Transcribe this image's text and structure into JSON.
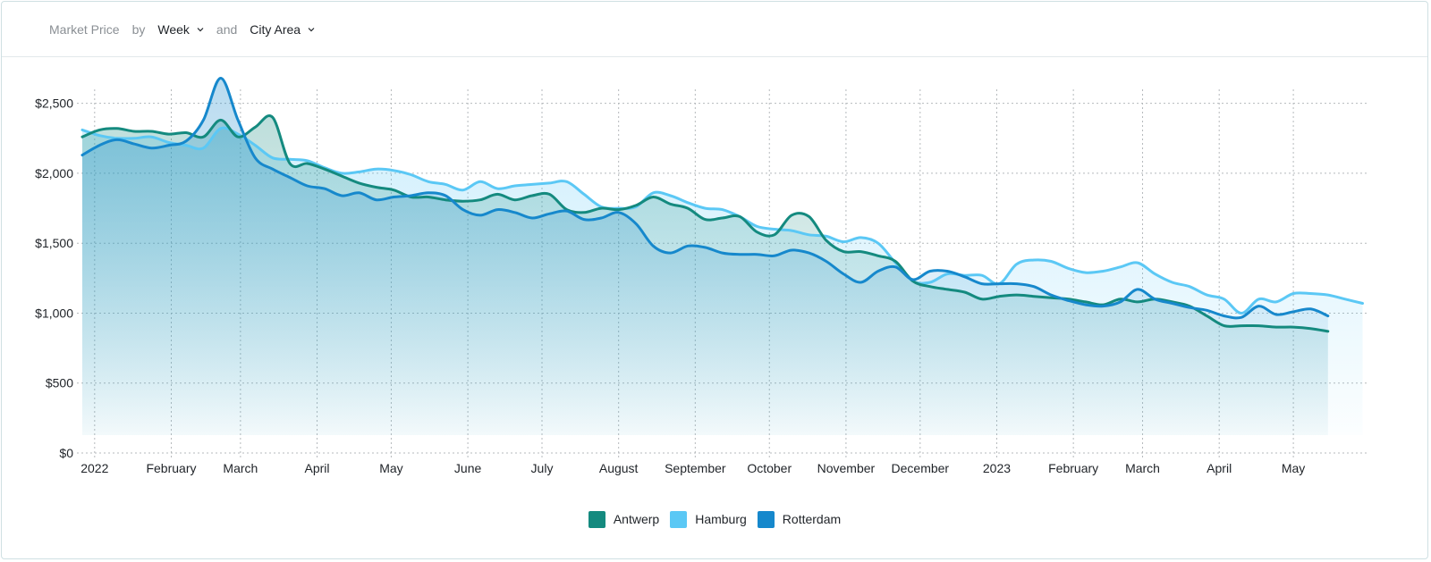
{
  "header": {
    "metric_label": "Market Price",
    "by_label": "by",
    "period_value": "Week",
    "and_label": "and",
    "group_value": "City Area"
  },
  "colors": {
    "antwerp": "#148a7f",
    "hamburg": "#5bc8f5",
    "rotterdam": "#1688cc",
    "grid": "#b5b9bc",
    "axis_text": "#1f2328"
  },
  "legend": [
    {
      "name": "Antwerp",
      "color": "#148a7f"
    },
    {
      "name": "Hamburg",
      "color": "#5bc8f5"
    },
    {
      "name": "Rotterdam",
      "color": "#1688cc"
    }
  ],
  "chart_data": {
    "type": "area",
    "ylim": [
      0,
      2600
    ],
    "xlim": [
      "2021-12-27",
      "2023-05-31"
    ],
    "yticks": [
      0,
      500,
      1000,
      1500,
      2000,
      2500
    ],
    "ytick_labels": [
      "$0",
      "$500",
      "$1,000",
      "$1,500",
      "$2,000",
      "$2,500"
    ],
    "xticks": [
      "2022-01-01",
      "2022-02-01",
      "2022-03-01",
      "2022-04-01",
      "2022-05-01",
      "2022-06-01",
      "2022-07-01",
      "2022-08-01",
      "2022-09-01",
      "2022-10-01",
      "2022-11-01",
      "2022-12-01",
      "2023-01-01",
      "2023-02-01",
      "2023-03-01",
      "2023-04-01",
      "2023-05-01"
    ],
    "xtick_labels": [
      "2022",
      "February",
      "March",
      "April",
      "May",
      "June",
      "July",
      "August",
      "September",
      "October",
      "November",
      "December",
      "2023",
      "February",
      "March",
      "April",
      "May"
    ],
    "grid": true,
    "legend_position": "bottom",
    "series": [
      {
        "name": "Antwerp",
        "points": [
          [
            "2021-12-27",
            2260
          ],
          [
            "2022-01-03",
            2310
          ],
          [
            "2022-01-10",
            2320
          ],
          [
            "2022-01-17",
            2300
          ],
          [
            "2022-01-24",
            2300
          ],
          [
            "2022-01-31",
            2280
          ],
          [
            "2022-02-07",
            2290
          ],
          [
            "2022-02-14",
            2260
          ],
          [
            "2022-02-21",
            2380
          ],
          [
            "2022-02-28",
            2260
          ],
          [
            "2022-03-07",
            2330
          ],
          [
            "2022-03-14",
            2400
          ],
          [
            "2022-03-21",
            2070
          ],
          [
            "2022-03-28",
            2070
          ],
          [
            "2022-04-04",
            2030
          ],
          [
            "2022-04-11",
            1980
          ],
          [
            "2022-04-18",
            1930
          ],
          [
            "2022-04-25",
            1900
          ],
          [
            "2022-05-02",
            1880
          ],
          [
            "2022-05-09",
            1830
          ],
          [
            "2022-05-16",
            1830
          ],
          [
            "2022-05-23",
            1810
          ],
          [
            "2022-05-30",
            1800
          ],
          [
            "2022-06-06",
            1810
          ],
          [
            "2022-06-13",
            1850
          ],
          [
            "2022-06-20",
            1810
          ],
          [
            "2022-06-27",
            1840
          ],
          [
            "2022-07-04",
            1850
          ],
          [
            "2022-07-11",
            1740
          ],
          [
            "2022-07-18",
            1720
          ],
          [
            "2022-07-25",
            1750
          ],
          [
            "2022-08-01",
            1740
          ],
          [
            "2022-08-08",
            1770
          ],
          [
            "2022-08-15",
            1830
          ],
          [
            "2022-08-22",
            1780
          ],
          [
            "2022-08-29",
            1750
          ],
          [
            "2022-09-05",
            1670
          ],
          [
            "2022-09-12",
            1680
          ],
          [
            "2022-09-19",
            1690
          ],
          [
            "2022-09-26",
            1580
          ],
          [
            "2022-10-03",
            1560
          ],
          [
            "2022-10-10",
            1700
          ],
          [
            "2022-10-17",
            1690
          ],
          [
            "2022-10-24",
            1520
          ],
          [
            "2022-10-31",
            1440
          ],
          [
            "2022-11-07",
            1440
          ],
          [
            "2022-11-14",
            1410
          ],
          [
            "2022-11-21",
            1370
          ],
          [
            "2022-11-28",
            1230
          ],
          [
            "2022-12-05",
            1190
          ],
          [
            "2022-12-12",
            1170
          ],
          [
            "2022-12-19",
            1150
          ],
          [
            "2022-12-26",
            1100
          ],
          [
            "2023-01-02",
            1120
          ],
          [
            "2023-01-09",
            1130
          ],
          [
            "2023-01-16",
            1120
          ],
          [
            "2023-01-23",
            1110
          ],
          [
            "2023-01-30",
            1100
          ],
          [
            "2023-02-06",
            1080
          ],
          [
            "2023-02-13",
            1060
          ],
          [
            "2023-02-20",
            1100
          ],
          [
            "2023-02-27",
            1080
          ],
          [
            "2023-03-06",
            1100
          ],
          [
            "2023-03-13",
            1080
          ],
          [
            "2023-03-20",
            1050
          ],
          [
            "2023-03-27",
            980
          ],
          [
            "2023-04-03",
            910
          ],
          [
            "2023-04-10",
            910
          ],
          [
            "2023-04-17",
            910
          ],
          [
            "2023-04-24",
            900
          ],
          [
            "2023-05-01",
            900
          ],
          [
            "2023-05-08",
            890
          ],
          [
            "2023-05-15",
            870
          ]
        ]
      },
      {
        "name": "Hamburg",
        "points": [
          [
            "2021-12-27",
            2310
          ],
          [
            "2022-01-03",
            2270
          ],
          [
            "2022-01-10",
            2250
          ],
          [
            "2022-01-17",
            2250
          ],
          [
            "2022-01-24",
            2260
          ],
          [
            "2022-01-31",
            2220
          ],
          [
            "2022-02-07",
            2200
          ],
          [
            "2022-02-14",
            2180
          ],
          [
            "2022-02-21",
            2320
          ],
          [
            "2022-02-28",
            2280
          ],
          [
            "2022-03-07",
            2200
          ],
          [
            "2022-03-14",
            2110
          ],
          [
            "2022-03-21",
            2100
          ],
          [
            "2022-03-28",
            2090
          ],
          [
            "2022-04-04",
            2040
          ],
          [
            "2022-04-11",
            2000
          ],
          [
            "2022-04-18",
            2010
          ],
          [
            "2022-04-25",
            2030
          ],
          [
            "2022-05-02",
            2020
          ],
          [
            "2022-05-09",
            1990
          ],
          [
            "2022-05-16",
            1940
          ],
          [
            "2022-05-23",
            1920
          ],
          [
            "2022-05-30",
            1880
          ],
          [
            "2022-06-06",
            1940
          ],
          [
            "2022-06-13",
            1890
          ],
          [
            "2022-06-20",
            1910
          ],
          [
            "2022-06-27",
            1920
          ],
          [
            "2022-07-04",
            1930
          ],
          [
            "2022-07-11",
            1940
          ],
          [
            "2022-07-18",
            1850
          ],
          [
            "2022-07-25",
            1760
          ],
          [
            "2022-08-01",
            1750
          ],
          [
            "2022-08-08",
            1760
          ],
          [
            "2022-08-15",
            1860
          ],
          [
            "2022-08-22",
            1840
          ],
          [
            "2022-08-29",
            1790
          ],
          [
            "2022-09-05",
            1750
          ],
          [
            "2022-09-12",
            1740
          ],
          [
            "2022-09-19",
            1690
          ],
          [
            "2022-09-26",
            1620
          ],
          [
            "2022-10-03",
            1600
          ],
          [
            "2022-10-10",
            1590
          ],
          [
            "2022-10-17",
            1560
          ],
          [
            "2022-10-24",
            1550
          ],
          [
            "2022-10-31",
            1510
          ],
          [
            "2022-11-07",
            1540
          ],
          [
            "2022-11-14",
            1500
          ],
          [
            "2022-11-21",
            1360
          ],
          [
            "2022-11-28",
            1230
          ],
          [
            "2022-12-05",
            1220
          ],
          [
            "2022-12-12",
            1280
          ],
          [
            "2022-12-19",
            1270
          ],
          [
            "2022-12-26",
            1270
          ],
          [
            "2023-01-02",
            1210
          ],
          [
            "2023-01-09",
            1350
          ],
          [
            "2023-01-16",
            1380
          ],
          [
            "2023-01-23",
            1370
          ],
          [
            "2023-01-30",
            1320
          ],
          [
            "2023-02-06",
            1290
          ],
          [
            "2023-02-13",
            1300
          ],
          [
            "2023-02-20",
            1330
          ],
          [
            "2023-02-27",
            1360
          ],
          [
            "2023-03-06",
            1280
          ],
          [
            "2023-03-13",
            1220
          ],
          [
            "2023-03-20",
            1190
          ],
          [
            "2023-03-27",
            1130
          ],
          [
            "2023-04-03",
            1100
          ],
          [
            "2023-04-10",
            1000
          ],
          [
            "2023-04-17",
            1100
          ],
          [
            "2023-04-24",
            1080
          ],
          [
            "2023-05-01",
            1140
          ],
          [
            "2023-05-08",
            1140
          ],
          [
            "2023-05-15",
            1130
          ],
          [
            "2023-05-22",
            1100
          ],
          [
            "2023-05-29",
            1070
          ]
        ]
      },
      {
        "name": "Rotterdam",
        "points": [
          [
            "2021-12-27",
            2130
          ],
          [
            "2022-01-03",
            2200
          ],
          [
            "2022-01-10",
            2240
          ],
          [
            "2022-01-17",
            2210
          ],
          [
            "2022-01-24",
            2180
          ],
          [
            "2022-01-31",
            2200
          ],
          [
            "2022-02-07",
            2230
          ],
          [
            "2022-02-14",
            2380
          ],
          [
            "2022-02-21",
            2680
          ],
          [
            "2022-02-28",
            2380
          ],
          [
            "2022-03-07",
            2110
          ],
          [
            "2022-03-14",
            2030
          ],
          [
            "2022-03-21",
            1970
          ],
          [
            "2022-03-28",
            1910
          ],
          [
            "2022-04-04",
            1890
          ],
          [
            "2022-04-11",
            1840
          ],
          [
            "2022-04-18",
            1860
          ],
          [
            "2022-04-25",
            1810
          ],
          [
            "2022-05-02",
            1830
          ],
          [
            "2022-05-09",
            1840
          ],
          [
            "2022-05-16",
            1860
          ],
          [
            "2022-05-23",
            1840
          ],
          [
            "2022-05-30",
            1740
          ],
          [
            "2022-06-06",
            1700
          ],
          [
            "2022-06-13",
            1740
          ],
          [
            "2022-06-20",
            1720
          ],
          [
            "2022-06-27",
            1680
          ],
          [
            "2022-07-04",
            1710
          ],
          [
            "2022-07-11",
            1730
          ],
          [
            "2022-07-18",
            1670
          ],
          [
            "2022-07-25",
            1680
          ],
          [
            "2022-08-01",
            1720
          ],
          [
            "2022-08-08",
            1640
          ],
          [
            "2022-08-15",
            1480
          ],
          [
            "2022-08-22",
            1430
          ],
          [
            "2022-08-29",
            1480
          ],
          [
            "2022-09-05",
            1470
          ],
          [
            "2022-09-12",
            1430
          ],
          [
            "2022-09-19",
            1420
          ],
          [
            "2022-09-26",
            1420
          ],
          [
            "2022-10-03",
            1410
          ],
          [
            "2022-10-10",
            1450
          ],
          [
            "2022-10-17",
            1430
          ],
          [
            "2022-10-24",
            1370
          ],
          [
            "2022-10-31",
            1280
          ],
          [
            "2022-11-07",
            1220
          ],
          [
            "2022-11-14",
            1300
          ],
          [
            "2022-11-21",
            1330
          ],
          [
            "2022-11-28",
            1240
          ],
          [
            "2022-12-05",
            1300
          ],
          [
            "2022-12-12",
            1300
          ],
          [
            "2022-12-19",
            1260
          ],
          [
            "2022-12-26",
            1210
          ],
          [
            "2023-01-02",
            1210
          ],
          [
            "2023-01-09",
            1210
          ],
          [
            "2023-01-16",
            1190
          ],
          [
            "2023-01-23",
            1130
          ],
          [
            "2023-01-30",
            1090
          ],
          [
            "2023-02-06",
            1060
          ],
          [
            "2023-02-13",
            1050
          ],
          [
            "2023-02-20",
            1080
          ],
          [
            "2023-02-27",
            1170
          ],
          [
            "2023-03-06",
            1100
          ],
          [
            "2023-03-13",
            1070
          ],
          [
            "2023-03-20",
            1040
          ],
          [
            "2023-03-27",
            1020
          ],
          [
            "2023-04-03",
            980
          ],
          [
            "2023-04-10",
            970
          ],
          [
            "2023-04-17",
            1050
          ],
          [
            "2023-04-24",
            990
          ],
          [
            "2023-05-01",
            1010
          ],
          [
            "2023-05-08",
            1030
          ],
          [
            "2023-05-15",
            980
          ]
        ]
      }
    ]
  }
}
